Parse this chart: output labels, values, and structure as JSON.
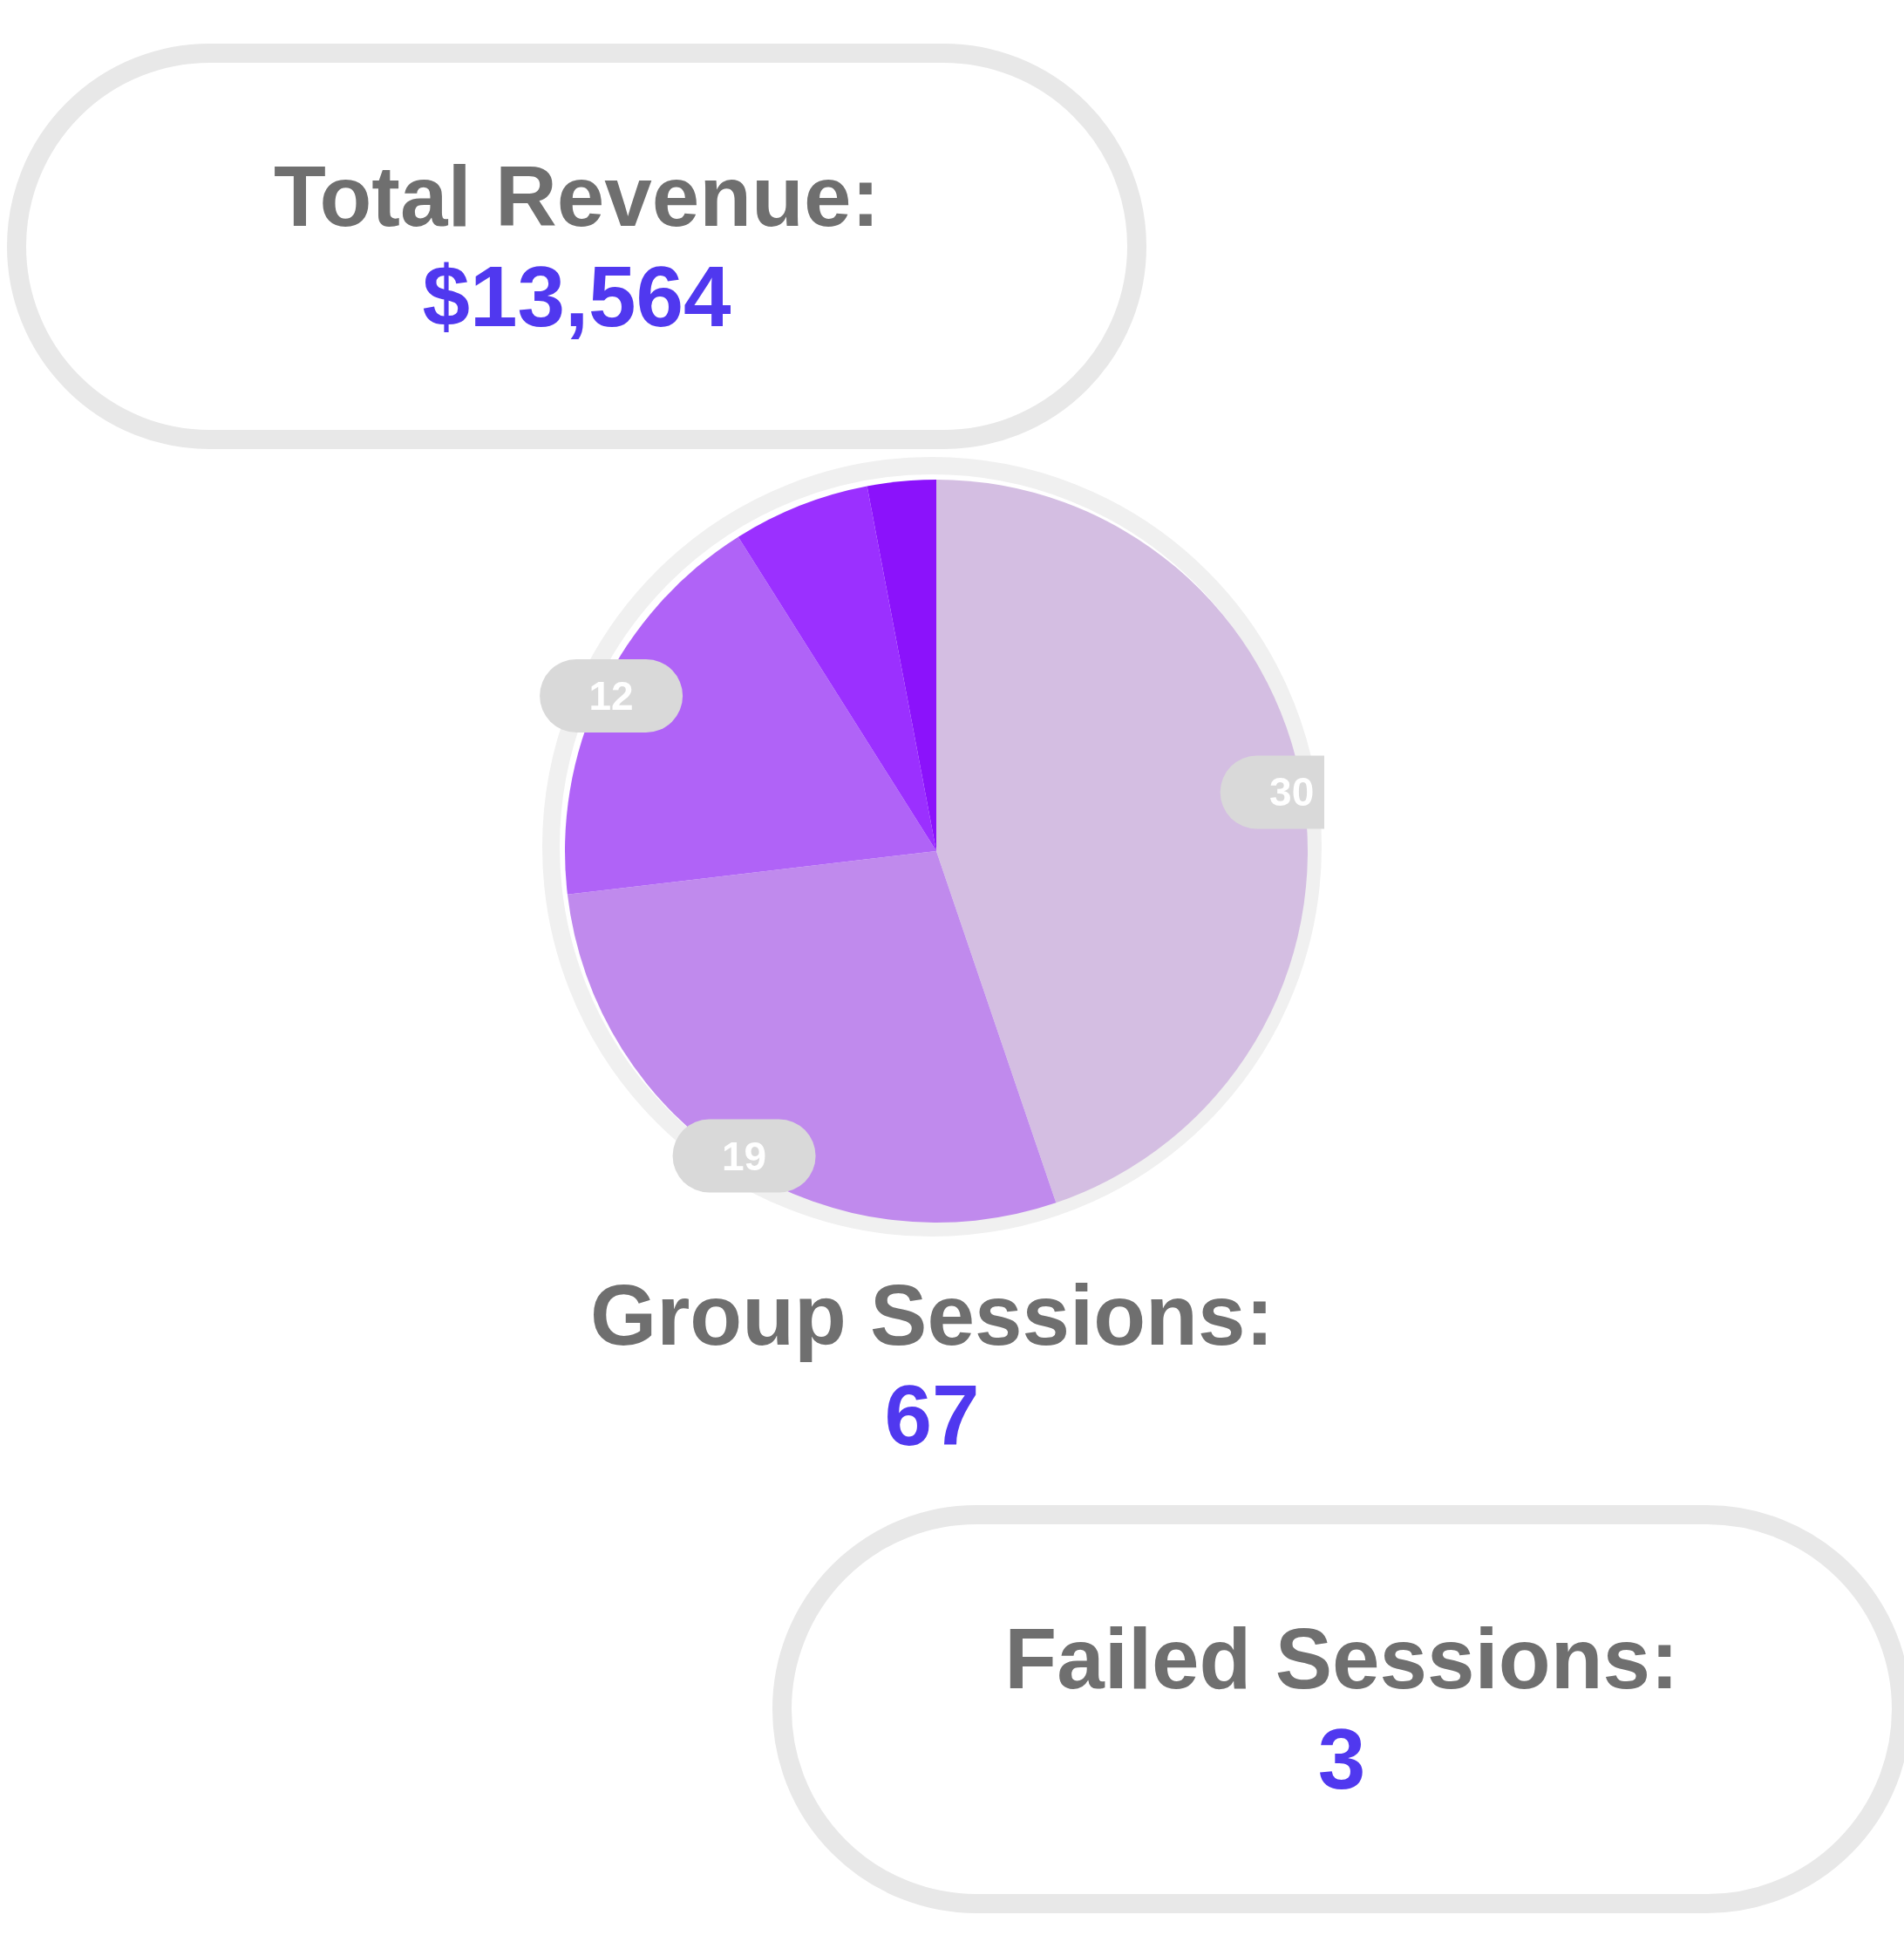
{
  "chart_data": [
    {
      "type": "other",
      "title": "Total Revenue:",
      "annotations": [
        "$13,564"
      ]
    },
    {
      "type": "pie",
      "title": "Group Sessions:",
      "subtitle": "67",
      "values": [
        30,
        19,
        12,
        4,
        2
      ],
      "colors": [
        "#d4bee2",
        "#c08aed",
        "#b063f7",
        "#9b30ff",
        "#8b12fb"
      ],
      "value_labels": [
        "30",
        "19",
        "12",
        null,
        null
      ]
    },
    {
      "type": "other",
      "title": "Failed Sessions:",
      "annotations": [
        "3"
      ]
    }
  ]
}
